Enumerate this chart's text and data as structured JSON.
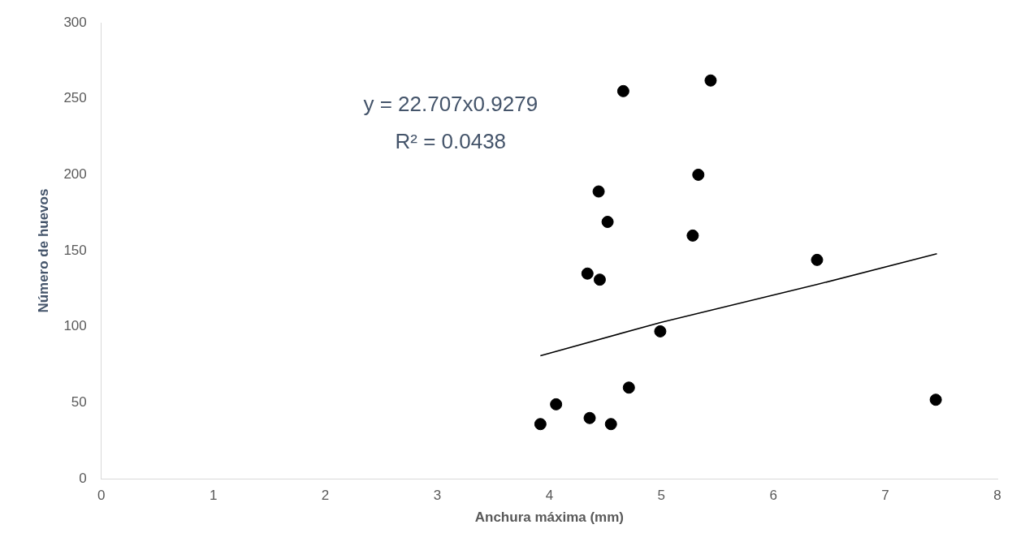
{
  "chart_data": {
    "type": "scatter",
    "xlabel": "Anchura máxima (mm)",
    "ylabel": "Número de huevos",
    "xlim": [
      0,
      8
    ],
    "xticks": [
      0,
      1,
      2,
      3,
      4,
      5,
      6,
      7,
      8
    ],
    "ylim": [
      0,
      300
    ],
    "yticks": [
      0,
      50,
      100,
      150,
      200,
      250,
      300
    ],
    "grid": false,
    "legend": false,
    "annotations": [
      "y = 22.707x0.9279",
      "R² = 0.0438"
    ],
    "series": [
      {
        "marker": "circle",
        "color": "#000000",
        "x": [
          4.66,
          5.44,
          5.33,
          4.44,
          4.52,
          5.28,
          4.34,
          4.45,
          4.99,
          4.71,
          4.06,
          3.92,
          4.36,
          4.55,
          6.39,
          7.45
        ],
        "values": [
          255,
          262,
          200,
          189,
          169,
          160,
          135,
          131,
          97,
          60,
          49,
          36,
          40,
          36,
          144,
          52
        ]
      },
      {
        "type": "line",
        "marker": "none",
        "color": "#000000",
        "x": [
          3.92,
          5,
          6.4,
          7.46
        ],
        "values": [
          81,
          103,
          128,
          148
        ]
      }
    ]
  }
}
